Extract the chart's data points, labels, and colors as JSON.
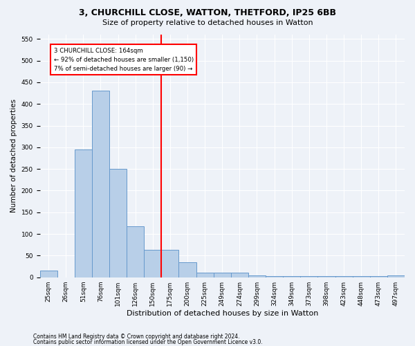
{
  "title": "3, CHURCHILL CLOSE, WATTON, THETFORD, IP25 6BB",
  "subtitle": "Size of property relative to detached houses in Watton",
  "xlabel": "Distribution of detached houses by size in Watton",
  "ylabel": "Number of detached properties",
  "categories": [
    "25sqm",
    "26sqm",
    "51sqm",
    "76sqm",
    "101sqm",
    "126sqm",
    "150sqm",
    "175sqm",
    "200sqm",
    "225sqm",
    "249sqm",
    "274sqm",
    "299sqm",
    "324sqm",
    "349sqm",
    "373sqm",
    "398sqm",
    "423sqm",
    "448sqm",
    "473sqm",
    "497sqm"
  ],
  "values": [
    15,
    0,
    295,
    430,
    250,
    118,
    63,
    63,
    35,
    10,
    10,
    10,
    5,
    3,
    3,
    3,
    3,
    3,
    3,
    3,
    5
  ],
  "bar_color": "#b8cfe8",
  "bar_edge_color": "#6699cc",
  "vline_color": "red",
  "annotation_text": "3 CHURCHILL CLOSE: 164sqm\n← 92% of detached houses are smaller (1,150)\n7% of semi-detached houses are larger (90) →",
  "annotation_box_color": "white",
  "annotation_box_edge": "red",
  "ylim": [
    0,
    560
  ],
  "yticks": [
    0,
    50,
    100,
    150,
    200,
    250,
    300,
    350,
    400,
    450,
    500,
    550
  ],
  "footnote1": "Contains HM Land Registry data © Crown copyright and database right 2024.",
  "footnote2": "Contains public sector information licensed under the Open Government Licence v3.0.",
  "bg_color": "#eef2f8",
  "grid_color": "#ffffff",
  "title_fontsize": 9,
  "subtitle_fontsize": 8,
  "ylabel_fontsize": 7.5,
  "xlabel_fontsize": 8,
  "tick_fontsize": 6.5,
  "footnote_fontsize": 5.5,
  "vline_x_index": 6.5
}
